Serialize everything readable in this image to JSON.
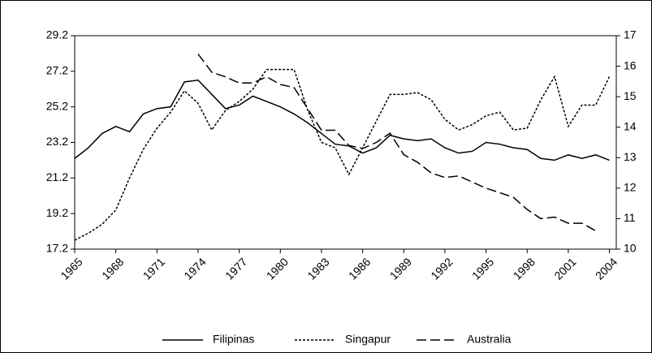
{
  "chart_data": {
    "type": "line",
    "x": [
      1965,
      1966,
      1967,
      1968,
      1969,
      1970,
      1971,
      1972,
      1973,
      1974,
      1975,
      1976,
      1977,
      1978,
      1979,
      1980,
      1981,
      1982,
      1983,
      1984,
      1985,
      1986,
      1987,
      1988,
      1989,
      1990,
      1991,
      1992,
      1993,
      1994,
      1995,
      1996,
      1997,
      1998,
      1999,
      2000,
      2001,
      2002,
      2003,
      2004
    ],
    "xlim": [
      1965,
      2004.5
    ],
    "xticks": [
      1965,
      1968,
      1971,
      1974,
      1977,
      1980,
      1983,
      1986,
      1989,
      1992,
      1995,
      1998,
      2001,
      2004
    ],
    "ylim": [
      17.2,
      29.2
    ],
    "yticks": [
      17.2,
      19.2,
      21.2,
      23.2,
      25.2,
      27.2,
      29.2
    ],
    "y2lim": [
      10,
      17
    ],
    "y2ticks": [
      10,
      11,
      12,
      13,
      14,
      15,
      16,
      17
    ],
    "legend": "bottom",
    "series": [
      {
        "name": "Filipinas",
        "color": "#000000",
        "dash": "solid",
        "values": [
          22.3,
          22.9,
          23.7,
          24.1,
          23.8,
          24.8,
          25.1,
          25.2,
          26.6,
          26.7,
          25.9,
          25.1,
          25.3,
          25.8,
          25.5,
          25.2,
          24.8,
          24.3,
          23.7,
          23.1,
          23.0,
          22.6,
          22.9,
          23.6,
          23.4,
          23.3,
          23.4,
          22.9,
          22.6,
          22.7,
          23.2,
          23.1,
          22.9,
          22.8,
          22.3,
          22.2,
          22.5,
          22.3,
          22.5,
          22.2
        ]
      },
      {
        "name": "Singapur",
        "color": "#000000",
        "dash": "dotted",
        "values": [
          17.7,
          18.1,
          18.6,
          19.4,
          21.2,
          22.8,
          24.0,
          24.9,
          26.1,
          25.4,
          23.9,
          25.0,
          25.5,
          26.2,
          27.3,
          27.3,
          27.3,
          25.0,
          23.2,
          22.9,
          21.4,
          22.9,
          24.4,
          25.9,
          25.9,
          26.0,
          25.6,
          24.5,
          23.9,
          24.2,
          24.7,
          24.9,
          23.9,
          24.0,
          25.6,
          26.9,
          24.1,
          25.3,
          25.3,
          26.9
        ]
      },
      {
        "name": "Australia",
        "color": "#000000",
        "dash": "dashed",
        "axis": "y2",
        "values": [
          null,
          null,
          null,
          null,
          null,
          null,
          null,
          null,
          null,
          16.4,
          15.8,
          15.65,
          15.45,
          15.45,
          15.65,
          15.4,
          15.3,
          14.6,
          13.9,
          13.9,
          13.4,
          13.3,
          13.5,
          13.8,
          13.1,
          12.85,
          12.5,
          12.35,
          12.4,
          12.2,
          12.0,
          11.85,
          11.7,
          11.3,
          11.0,
          11.05,
          10.85,
          10.85,
          10.6,
          null
        ]
      }
    ]
  }
}
